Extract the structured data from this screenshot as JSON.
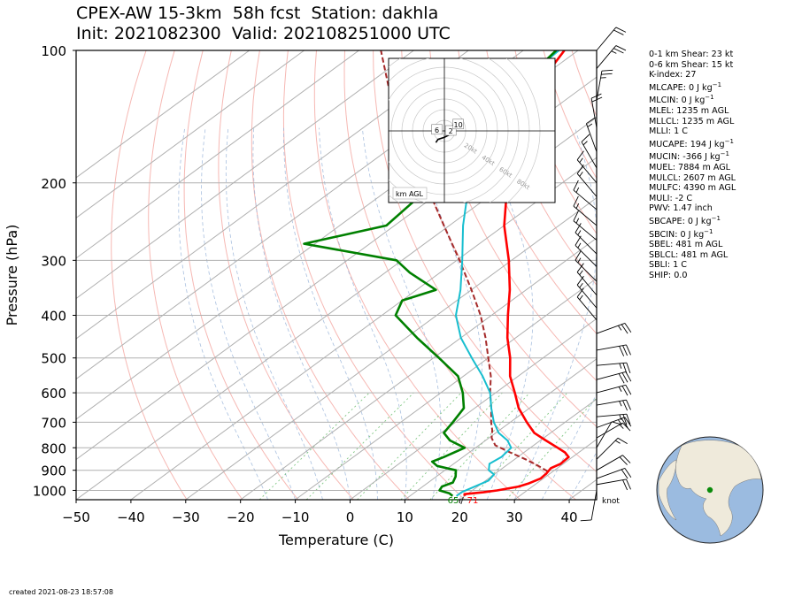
{
  "title_line1": "CPEX-AW 15-3km  58h fcst  Station: dakhla",
  "title_line2": "Init: 2021082300  Valid: 202108251000 UTC",
  "created": "created 2021-08-23 18:57:08",
  "indices": [
    {
      "label": "0-1 km Shear: 23 kt"
    },
    {
      "label": "0-6 km Shear: 15 kt"
    },
    {
      "label": "K-index: 27"
    },
    {
      "label": "MLCAPE: 0 J kg",
      "unit_sup": "−1"
    },
    {
      "label": "MLCIN: 0 J kg",
      "unit_sup": "−1"
    },
    {
      "label": "MLEL: 1235 m AGL"
    },
    {
      "label": "MLLCL: 1235 m AGL"
    },
    {
      "label": "MLLI: 1 C"
    },
    {
      "label": "MUCAPE: 194 J kg",
      "unit_sup": "−1"
    },
    {
      "label": "MUCIN: -366 J kg",
      "unit_sup": "−1"
    },
    {
      "label": "MUEL: 7884 m AGL"
    },
    {
      "label": "MULCL: 2607 m AGL"
    },
    {
      "label": "MULFC: 4390 m AGL"
    },
    {
      "label": "MULI: -2 C"
    },
    {
      "label": "PWV: 1.47 inch"
    },
    {
      "label": "SBCAPE: 0 J kg",
      "unit_sup": "−1"
    },
    {
      "label": "SBCIN: 0 J kg",
      "unit_sup": "−1"
    },
    {
      "label": "SBEL: 481 m AGL"
    },
    {
      "label": "SBLCL: 481 m AGL"
    },
    {
      "label": "SBLI: 1 C"
    },
    {
      "label": "SHIP: 0.0"
    }
  ],
  "chart_data": {
    "type": "skew-t",
    "xlabel": "Temperature (C)",
    "ylabel": "Pressure (hPa)",
    "xlim": [
      -50,
      45
    ],
    "ylim": [
      1050,
      100
    ],
    "y_scale": "log",
    "x_ticks": [
      -50,
      -40,
      -30,
      -20,
      -10,
      0,
      10,
      20,
      30,
      40
    ],
    "x_tick_labels": [
      "−50",
      "−40",
      "−30",
      "−20",
      "−10",
      "0",
      "10",
      "20",
      "30",
      "40"
    ],
    "y_ticks": [
      100,
      200,
      300,
      400,
      500,
      600,
      700,
      800,
      900,
      1000
    ],
    "y_tick_labels": [
      "100",
      "200",
      "300",
      "400",
      "500",
      "600",
      "700",
      "800",
      "900",
      "1000"
    ],
    "grid": true,
    "surface_dewpoint_label": "65",
    "surface_temp_label": "71",
    "wind_unit_label": "knot",
    "colors": {
      "temperature": "#ff0000",
      "dewpoint": "#008000",
      "wetbulb": "#17becf",
      "parcel": "#a52a2a",
      "wind": "#000000"
    },
    "temperature": [
      {
        "p": 1030,
        "t": 20.0
      },
      {
        "p": 1020,
        "t": 19.5
      },
      {
        "p": 1010,
        "t": 22.5
      },
      {
        "p": 1000,
        "t": 24.5
      },
      {
        "p": 980,
        "t": 27.5
      },
      {
        "p": 965,
        "t": 28.5
      },
      {
        "p": 940,
        "t": 29.5
      },
      {
        "p": 915,
        "t": 29.3
      },
      {
        "p": 890,
        "t": 28.8
      },
      {
        "p": 870,
        "t": 29.5
      },
      {
        "p": 840,
        "t": 29.3
      },
      {
        "p": 820,
        "t": 27.5
      },
      {
        "p": 800,
        "t": 25.0
      },
      {
        "p": 770,
        "t": 21.0
      },
      {
        "p": 740,
        "t": 17.0
      },
      {
        "p": 700,
        "t": 13.0
      },
      {
        "p": 650,
        "t": 8.0
      },
      {
        "p": 600,
        "t": 3.5
      },
      {
        "p": 550,
        "t": -1.5
      },
      {
        "p": 500,
        "t": -6.0
      },
      {
        "p": 450,
        "t": -11.5
      },
      {
        "p": 400,
        "t": -17.0
      },
      {
        "p": 350,
        "t": -23.0
      },
      {
        "p": 300,
        "t": -30.5
      },
      {
        "p": 250,
        "t": -40.0
      },
      {
        "p": 200,
        "t": -50.0
      },
      {
        "p": 150,
        "t": -62.0
      },
      {
        "p": 130,
        "t": -67.5
      },
      {
        "p": 110,
        "t": -70.5
      },
      {
        "p": 100,
        "t": -72.5
      }
    ],
    "dewpoint": [
      {
        "p": 1030,
        "t": 17.8
      },
      {
        "p": 1015,
        "t": 16.5
      },
      {
        "p": 1000,
        "t": 14.0
      },
      {
        "p": 980,
        "t": 13.5
      },
      {
        "p": 960,
        "t": 14.5
      },
      {
        "p": 930,
        "t": 13.5
      },
      {
        "p": 900,
        "t": 12.0
      },
      {
        "p": 880,
        "t": 7.5
      },
      {
        "p": 860,
        "t": 5.5
      },
      {
        "p": 840,
        "t": 6.5
      },
      {
        "p": 800,
        "t": 8.0
      },
      {
        "p": 770,
        "t": 3.5
      },
      {
        "p": 740,
        "t": 0.5
      },
      {
        "p": 700,
        "t": -0.5
      },
      {
        "p": 650,
        "t": -2.0
      },
      {
        "p": 600,
        "t": -6.0
      },
      {
        "p": 550,
        "t": -11.0
      },
      {
        "p": 500,
        "t": -19.0
      },
      {
        "p": 450,
        "t": -28.0
      },
      {
        "p": 400,
        "t": -37.5
      },
      {
        "p": 370,
        "t": -40.0
      },
      {
        "p": 350,
        "t": -36.5
      },
      {
        "p": 320,
        "t": -45.5
      },
      {
        "p": 300,
        "t": -51.0
      },
      {
        "p": 275,
        "t": -72.0
      },
      {
        "p": 250,
        "t": -61.5
      },
      {
        "p": 220,
        "t": -62.5
      },
      {
        "p": 200,
        "t": -64.5
      },
      {
        "p": 170,
        "t": -65.0
      },
      {
        "p": 140,
        "t": -68.5
      },
      {
        "p": 120,
        "t": -72.0
      },
      {
        "p": 100,
        "t": -74.0
      }
    ],
    "wetbulb": [
      {
        "p": 1030,
        "t": 18.5
      },
      {
        "p": 1010,
        "t": 18.5
      },
      {
        "p": 980,
        "t": 19.5
      },
      {
        "p": 950,
        "t": 20.5
      },
      {
        "p": 920,
        "t": 20.0
      },
      {
        "p": 900,
        "t": 18.0
      },
      {
        "p": 870,
        "t": 16.5
      },
      {
        "p": 840,
        "t": 17.0
      },
      {
        "p": 800,
        "t": 16.5
      },
      {
        "p": 770,
        "t": 14.0
      },
      {
        "p": 740,
        "t": 10.5
      },
      {
        "p": 700,
        "t": 7.0
      },
      {
        "p": 650,
        "t": 3.0
      },
      {
        "p": 600,
        "t": -1.0
      },
      {
        "p": 550,
        "t": -6.5
      },
      {
        "p": 500,
        "t": -13.0
      },
      {
        "p": 450,
        "t": -20.0
      },
      {
        "p": 400,
        "t": -26.5
      },
      {
        "p": 350,
        "t": -32.0
      },
      {
        "p": 300,
        "t": -39.0
      },
      {
        "p": 250,
        "t": -47.5
      },
      {
        "p": 200,
        "t": -57.0
      },
      {
        "p": 150,
        "t": -68.0
      },
      {
        "p": 130,
        "t": -72.5
      },
      {
        "p": 110,
        "t": -73.0
      },
      {
        "p": 100,
        "t": -73.5
      }
    ],
    "parcel": [
      {
        "p": 905,
        "t": 29.0
      },
      {
        "p": 880,
        "t": 26.0
      },
      {
        "p": 850,
        "t": 22.0
      },
      {
        "p": 820,
        "t": 17.5
      },
      {
        "p": 790,
        "t": 13.0
      },
      {
        "p": 760,
        "t": 10.5
      },
      {
        "p": 730,
        "t": 8.7
      },
      {
        "p": 700,
        "t": 6.5
      },
      {
        "p": 650,
        "t": 3.0
      },
      {
        "p": 600,
        "t": -1.0
      },
      {
        "p": 550,
        "t": -5.0
      },
      {
        "p": 500,
        "t": -10.0
      },
      {
        "p": 450,
        "t": -15.5
      },
      {
        "p": 400,
        "t": -22.0
      },
      {
        "p": 350,
        "t": -30.0
      },
      {
        "p": 300,
        "t": -39.5
      },
      {
        "p": 250,
        "t": -51.0
      },
      {
        "p": 200,
        "t": -65.0
      },
      {
        "p": 150,
        "t": -83.0
      },
      {
        "p": 120,
        "t": -96.0
      },
      {
        "p": 100,
        "t": -106.0
      }
    ],
    "wind_barbs": [
      {
        "p": 1000,
        "speed": 10,
        "dir": 190
      },
      {
        "p": 970,
        "speed": 20,
        "dir": 80
      },
      {
        "p": 940,
        "speed": 20,
        "dir": 70
      },
      {
        "p": 900,
        "speed": 20,
        "dir": 60
      },
      {
        "p": 850,
        "speed": 15,
        "dir": 45
      },
      {
        "p": 800,
        "speed": 10,
        "dir": 30
      },
      {
        "p": 760,
        "speed": 15,
        "dir": 60
      },
      {
        "p": 720,
        "speed": 25,
        "dir": 70
      },
      {
        "p": 680,
        "speed": 25,
        "dir": 85
      },
      {
        "p": 640,
        "speed": 25,
        "dir": 80
      },
      {
        "p": 600,
        "speed": 25,
        "dir": 75
      },
      {
        "p": 560,
        "speed": 30,
        "dir": 75
      },
      {
        "p": 520,
        "speed": 25,
        "dir": 85
      },
      {
        "p": 480,
        "speed": 30,
        "dir": 80
      },
      {
        "p": 440,
        "speed": 25,
        "dir": 70
      },
      {
        "p": 410,
        "speed": 15,
        "dir": 320
      },
      {
        "p": 385,
        "speed": 15,
        "dir": 320
      },
      {
        "p": 360,
        "speed": 15,
        "dir": 320
      },
      {
        "p": 335,
        "speed": 15,
        "dir": 315
      },
      {
        "p": 310,
        "speed": 15,
        "dir": 315
      },
      {
        "p": 290,
        "speed": 15,
        "dir": 315
      },
      {
        "p": 270,
        "speed": 15,
        "dir": 310
      },
      {
        "p": 250,
        "speed": 15,
        "dir": 310
      },
      {
        "p": 230,
        "speed": 15,
        "dir": 310
      },
      {
        "p": 215,
        "speed": 15,
        "dir": 320
      },
      {
        "p": 200,
        "speed": 15,
        "dir": 320
      },
      {
        "p": 185,
        "speed": 15,
        "dir": 330
      },
      {
        "p": 170,
        "speed": 15,
        "dir": 340
      },
      {
        "p": 150,
        "speed": 20,
        "dir": 350
      },
      {
        "p": 130,
        "speed": 25,
        "dir": 10
      },
      {
        "p": 110,
        "speed": 25,
        "dir": 40
      },
      {
        "p": 100,
        "speed": 20,
        "dir": 40
      }
    ],
    "hodograph": {
      "ring_labels": [
        "20kt",
        "40kt",
        "60kt",
        "80kt"
      ],
      "ring_speeds": [
        20,
        40,
        60,
        80
      ],
      "range_kt": 40,
      "height_markers": [
        {
          "label": "6",
          "u": -7,
          "v": 1
        },
        {
          "label": "2",
          "u": 6,
          "v": 0
        },
        {
          "label": "10",
          "u": 13,
          "v": 6
        }
      ],
      "legend": "km AGL",
      "trace": [
        {
          "u": -8,
          "v": -11
        },
        {
          "u": -6,
          "v": -8
        },
        {
          "u": 0,
          "v": -6
        },
        {
          "u": 4,
          "v": -4
        },
        {
          "u": 6,
          "v": -2
        },
        {
          "u": 4,
          "v": 0
        },
        {
          "u": 2,
          "v": 2
        },
        {
          "u": 5,
          "v": 3
        },
        {
          "u": 8,
          "v": 5
        },
        {
          "u": 12,
          "v": 4
        },
        {
          "u": 14,
          "v": 6
        }
      ]
    },
    "globe_marker": {
      "lat": 23.7,
      "lon": -15.9
    }
  }
}
